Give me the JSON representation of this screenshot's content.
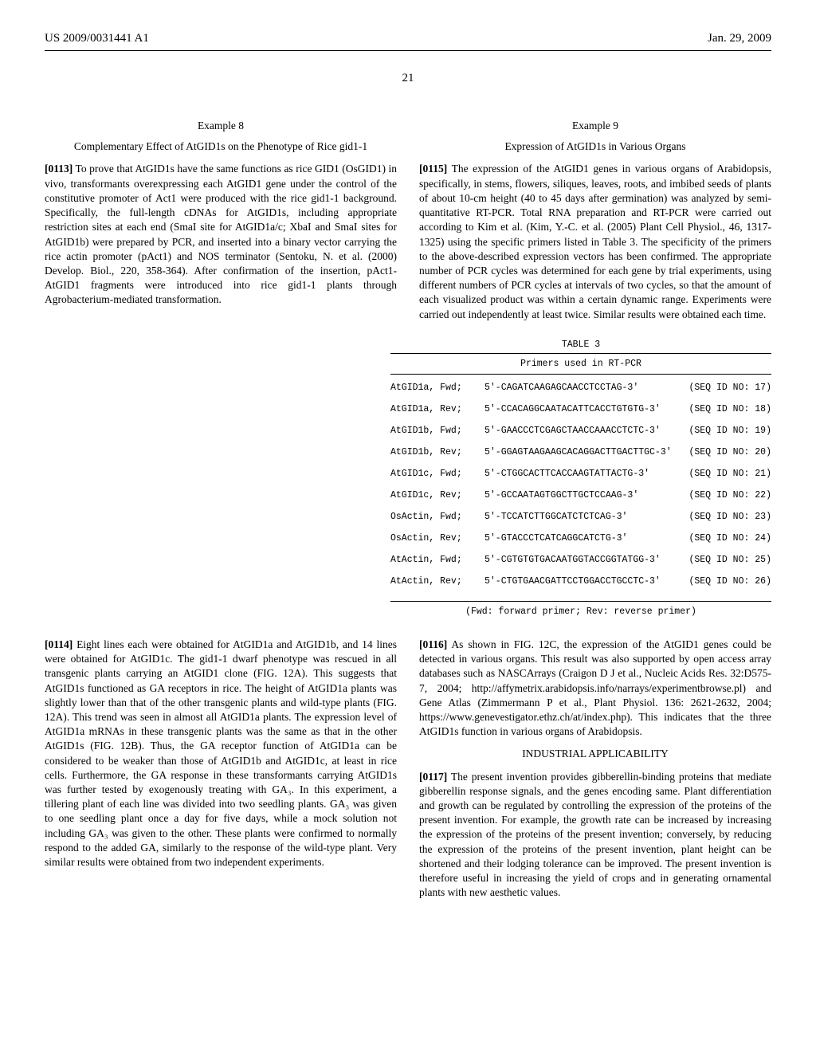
{
  "header": {
    "pub_number": "US 2009/0031441 A1",
    "pub_date": "Jan. 29, 2009"
  },
  "page_number": "21",
  "left_col": {
    "example_label": "Example 8",
    "example_title": "Complementary Effect of AtGID1s on the Phenotype of Rice gid1-1",
    "para1_num": "[0113]",
    "para1_text": "To prove that AtGID1s have the same functions as rice GID1 (OsGID1) in vivo, transformants overexpressing each AtGID1 gene under the control of the constitutive promoter of Act1 were produced with the rice gid1-1 background. Specifically, the full-length cDNAs for AtGID1s, including appropriate restriction sites at each end (SmaI site for AtGID1a/c; XbaI and SmaI sites for AtGID1b) were prepared by PCR, and inserted into a binary vector carrying the rice actin promoter (pAct1) and NOS terminator (Sentoku, N. et al. (2000) Develop. Biol., 220, 358-364). After confirmation of the insertion, pAct1-AtGID1 fragments were introduced into rice gid1-1 plants through Agrobacterium-mediated transformation."
  },
  "right_col": {
    "example_label": "Example 9",
    "example_title": "Expression of AtGID1s in Various Organs",
    "para1_num": "[0115]",
    "para1_text": "The expression of the AtGID1 genes in various organs of Arabidopsis, specifically, in stems, flowers, siliques, leaves, roots, and imbibed seeds of plants of about 10-cm height (40 to 45 days after germination) was analyzed by semi-quantitative RT-PCR. Total RNA preparation and RT-PCR were carried out according to Kim et al. (Kim, Y.-C. et al. (2005) Plant Cell Physiol., 46, 1317-1325) using the specific primers listed in Table 3. The specificity of the primers to the above-described expression vectors has been confirmed. The appropriate number of PCR cycles was determined for each gene by trial experiments, using different numbers of PCR cycles at intervals of two cycles, so that the amount of each visualized product was within a certain dynamic range. Experiments were carried out independently at least twice. Similar results were obtained each time."
  },
  "table": {
    "caption": "TABLE 3",
    "title": "Primers used in RT-PCR",
    "footnote": "(Fwd: forward primer; Rev: reverse primer)",
    "rows": [
      {
        "name": "AtGID1a, Fwd;",
        "seq": "5'-CAGATCAAGAGCAACCTCCTAG-3'",
        "id": "(SEQ ID NO: 17)"
      },
      {
        "name": "AtGID1a, Rev;",
        "seq": "5'-CCACAGGCAATACATTCACCTGTGTG-3'",
        "id": "(SEQ ID NO: 18)"
      },
      {
        "name": "AtGID1b, Fwd;",
        "seq": "5'-GAACCCTCGAGCTAACCAAACCTCTC-3'",
        "id": "(SEQ ID NO: 19)"
      },
      {
        "name": "AtGID1b, Rev;",
        "seq": "5'-GGAGTAAGAAGCACAGGACTTGACTTGC-3'",
        "id": "(SEQ ID NO: 20)"
      },
      {
        "name": "AtGID1c, Fwd;",
        "seq": "5'-CTGGCACTTCACCAAGTATTACTG-3'",
        "id": "(SEQ ID NO: 21)"
      },
      {
        "name": "AtGID1c, Rev;",
        "seq": "5'-GCCAATAGTGGCTTGCTCCAAG-3'",
        "id": "(SEQ ID NO: 22)"
      },
      {
        "name": "OsActin, Fwd;",
        "seq": "5'-TCCATCTTGGCATCTCTCAG-3'",
        "id": "(SEQ ID NO: 23)"
      },
      {
        "name": "OsActin, Rev;",
        "seq": "5'-GTACCCTCATCAGGCATCTG-3'",
        "id": "(SEQ ID NO: 24)"
      },
      {
        "name": "AtActin, Fwd;",
        "seq": "5'-CGTGTGTGACAATGGTACCGGTATGG-3'",
        "id": "(SEQ ID NO: 25)"
      },
      {
        "name": "AtActin, Rev;",
        "seq": "5'-CTGTGAACGATTCCTGGACCTGCCTC-3'",
        "id": "(SEQ ID NO: 26)"
      }
    ]
  },
  "lower_left": {
    "para_num": "[0114]",
    "para_text": "Eight lines each were obtained for AtGID1a and AtGID1b, and 14 lines were obtained for AtGID1c. The gid1-1 dwarf phenotype was rescued in all transgenic plants carrying an AtGID1 clone (FIG. 12A). This suggests that AtGID1s functioned as GA receptors in rice. The height of AtGID1a plants was slightly lower than that of the other transgenic plants and wild-type plants (FIG. 12A). This trend was seen in almost all AtGID1a plants. The expression level of AtGID1a mRNAs in these transgenic plants was the same as that in the other AtGID1s (FIG. 12B). Thus, the GA receptor function of AtGID1a can be considered to be weaker than those of AtGID1b and AtGID1c, at least in rice cells. Furthermore, the GA response in these transformants carrying AtGID1s was further tested by exogenously treating with GA₃. In this experiment, a tillering plant of each line was divided into two seedling plants. GA₃ was given to one seedling plant once a day for five days, while a mock solution not including GA₃ was given to the other. These plants were confirmed to normally respond to the added GA, similarly to the response of the wild-type plant. Very similar results were obtained from two independent experiments."
  },
  "lower_right": {
    "para1_num": "[0116]",
    "para1_text": "As shown in FIG. 12C, the expression of the AtGID1 genes could be detected in various organs. This result was also supported by open access array databases such as NASCArrays (Craigon D J et al., Nucleic Acids Res. 32:D575-7, 2004; http://affymetrix.arabidopsis.info/narrays/experimentbrowse.pl) and Gene Atlas (Zimmermann P et al., Plant Physiol. 136: 2621-2632, 2004; https://www.genevestigator.ethz.ch/at/index.php). This indicates that the three AtGID1s function in various organs of Arabidopsis.",
    "section_heading": "INDUSTRIAL APPLICABILITY",
    "para2_num": "[0117]",
    "para2_text": "The present invention provides gibberellin-binding proteins that mediate gibberellin response signals, and the genes encoding same. Plant differentiation and growth can be regulated by controlling the expression of the proteins of the present invention. For example, the growth rate can be increased by increasing the expression of the proteins of the present invention; conversely, by reducing the expression of the proteins of the present invention, plant height can be shortened and their lodging tolerance can be improved. The present invention is therefore useful in increasing the yield of crops and in generating ornamental plants with new aesthetic values."
  }
}
